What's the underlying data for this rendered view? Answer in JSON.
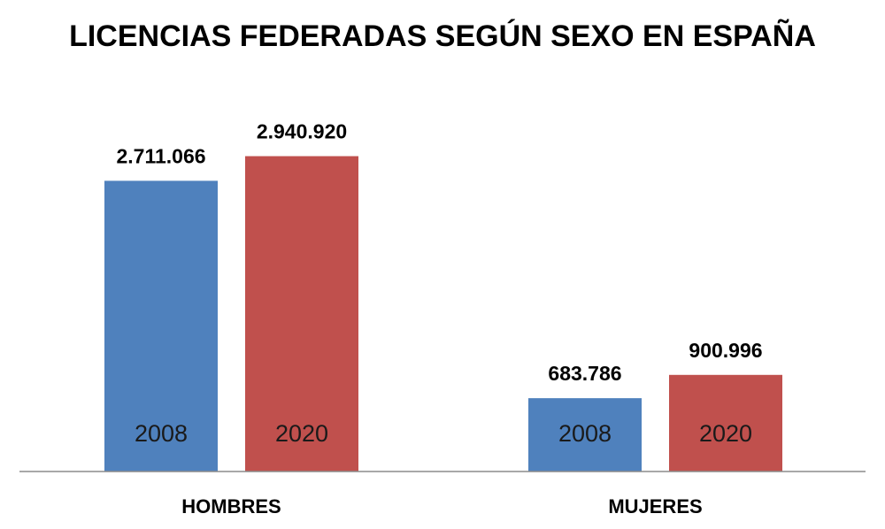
{
  "chart_data": {
    "type": "bar",
    "title": "LICENCIAS FEDERADAS SEGÚN SEXO EN ESPAÑA",
    "categories": [
      "HOMBRES",
      "MUJERES"
    ],
    "series": [
      {
        "name": "2008",
        "color": "#4f81bd",
        "values": [
          2711066,
          683786
        ],
        "labels": [
          "2.711.066",
          "683.786"
        ]
      },
      {
        "name": "2020",
        "color": "#c0504d",
        "values": [
          2940920,
          900996
        ],
        "labels": [
          "2.940.920",
          "900.996"
        ]
      }
    ],
    "ylim": [
      0,
      3300000
    ],
    "grid": false,
    "legend": "none"
  }
}
